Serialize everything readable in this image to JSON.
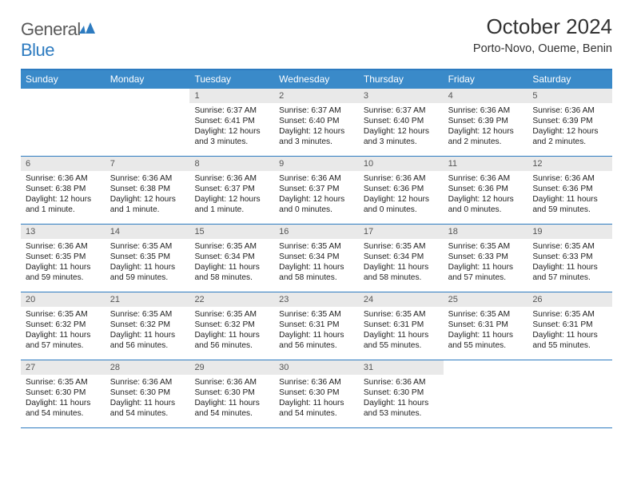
{
  "brand": {
    "part1": "General",
    "part2": "Blue"
  },
  "title": "October 2024",
  "location": "Porto-Novo, Oueme, Benin",
  "colors": {
    "header_bar": "#3a8ac9",
    "rule": "#2d7bc0",
    "daynum_bg": "#e9e9e9",
    "page_bg": "#ffffff"
  },
  "weekdays": [
    "Sunday",
    "Monday",
    "Tuesday",
    "Wednesday",
    "Thursday",
    "Friday",
    "Saturday"
  ],
  "weeks": [
    [
      null,
      null,
      {
        "n": "1",
        "sr": "6:37 AM",
        "ss": "6:41 PM",
        "dl": "12 hours and 3 minutes."
      },
      {
        "n": "2",
        "sr": "6:37 AM",
        "ss": "6:40 PM",
        "dl": "12 hours and 3 minutes."
      },
      {
        "n": "3",
        "sr": "6:37 AM",
        "ss": "6:40 PM",
        "dl": "12 hours and 3 minutes."
      },
      {
        "n": "4",
        "sr": "6:36 AM",
        "ss": "6:39 PM",
        "dl": "12 hours and 2 minutes."
      },
      {
        "n": "5",
        "sr": "6:36 AM",
        "ss": "6:39 PM",
        "dl": "12 hours and 2 minutes."
      }
    ],
    [
      {
        "n": "6",
        "sr": "6:36 AM",
        "ss": "6:38 PM",
        "dl": "12 hours and 1 minute."
      },
      {
        "n": "7",
        "sr": "6:36 AM",
        "ss": "6:38 PM",
        "dl": "12 hours and 1 minute."
      },
      {
        "n": "8",
        "sr": "6:36 AM",
        "ss": "6:37 PM",
        "dl": "12 hours and 1 minute."
      },
      {
        "n": "9",
        "sr": "6:36 AM",
        "ss": "6:37 PM",
        "dl": "12 hours and 0 minutes."
      },
      {
        "n": "10",
        "sr": "6:36 AM",
        "ss": "6:36 PM",
        "dl": "12 hours and 0 minutes."
      },
      {
        "n": "11",
        "sr": "6:36 AM",
        "ss": "6:36 PM",
        "dl": "12 hours and 0 minutes."
      },
      {
        "n": "12",
        "sr": "6:36 AM",
        "ss": "6:36 PM",
        "dl": "11 hours and 59 minutes."
      }
    ],
    [
      {
        "n": "13",
        "sr": "6:36 AM",
        "ss": "6:35 PM",
        "dl": "11 hours and 59 minutes."
      },
      {
        "n": "14",
        "sr": "6:35 AM",
        "ss": "6:35 PM",
        "dl": "11 hours and 59 minutes."
      },
      {
        "n": "15",
        "sr": "6:35 AM",
        "ss": "6:34 PM",
        "dl": "11 hours and 58 minutes."
      },
      {
        "n": "16",
        "sr": "6:35 AM",
        "ss": "6:34 PM",
        "dl": "11 hours and 58 minutes."
      },
      {
        "n": "17",
        "sr": "6:35 AM",
        "ss": "6:34 PM",
        "dl": "11 hours and 58 minutes."
      },
      {
        "n": "18",
        "sr": "6:35 AM",
        "ss": "6:33 PM",
        "dl": "11 hours and 57 minutes."
      },
      {
        "n": "19",
        "sr": "6:35 AM",
        "ss": "6:33 PM",
        "dl": "11 hours and 57 minutes."
      }
    ],
    [
      {
        "n": "20",
        "sr": "6:35 AM",
        "ss": "6:32 PM",
        "dl": "11 hours and 57 minutes."
      },
      {
        "n": "21",
        "sr": "6:35 AM",
        "ss": "6:32 PM",
        "dl": "11 hours and 56 minutes."
      },
      {
        "n": "22",
        "sr": "6:35 AM",
        "ss": "6:32 PM",
        "dl": "11 hours and 56 minutes."
      },
      {
        "n": "23",
        "sr": "6:35 AM",
        "ss": "6:31 PM",
        "dl": "11 hours and 56 minutes."
      },
      {
        "n": "24",
        "sr": "6:35 AM",
        "ss": "6:31 PM",
        "dl": "11 hours and 55 minutes."
      },
      {
        "n": "25",
        "sr": "6:35 AM",
        "ss": "6:31 PM",
        "dl": "11 hours and 55 minutes."
      },
      {
        "n": "26",
        "sr": "6:35 AM",
        "ss": "6:31 PM",
        "dl": "11 hours and 55 minutes."
      }
    ],
    [
      {
        "n": "27",
        "sr": "6:35 AM",
        "ss": "6:30 PM",
        "dl": "11 hours and 54 minutes."
      },
      {
        "n": "28",
        "sr": "6:36 AM",
        "ss": "6:30 PM",
        "dl": "11 hours and 54 minutes."
      },
      {
        "n": "29",
        "sr": "6:36 AM",
        "ss": "6:30 PM",
        "dl": "11 hours and 54 minutes."
      },
      {
        "n": "30",
        "sr": "6:36 AM",
        "ss": "6:30 PM",
        "dl": "11 hours and 54 minutes."
      },
      {
        "n": "31",
        "sr": "6:36 AM",
        "ss": "6:30 PM",
        "dl": "11 hours and 53 minutes."
      },
      null,
      null
    ]
  ],
  "labels": {
    "sunrise": "Sunrise:",
    "sunset": "Sunset:",
    "daylight": "Daylight:"
  }
}
